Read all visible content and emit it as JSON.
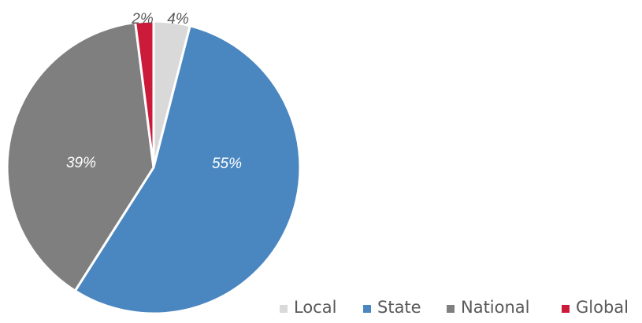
{
  "chart_data": {
    "type": "pie",
    "title": "",
    "legend_position": "bottom-right",
    "slices": [
      {
        "name": "Local",
        "value": 4,
        "label": "4%",
        "color": "#d9d9d9",
        "label_color": "#595959"
      },
      {
        "name": "State",
        "value": 55,
        "label": "55%",
        "color": "#4a86c0",
        "label_color": "#ffffff"
      },
      {
        "name": "National",
        "value": 39,
        "label": "39%",
        "color": "#7f7f7f",
        "label_color": "#ffffff"
      },
      {
        "name": "Global",
        "value": 2,
        "label": "2%",
        "color": "#cc1a3a",
        "label_color": "#595959"
      }
    ]
  }
}
